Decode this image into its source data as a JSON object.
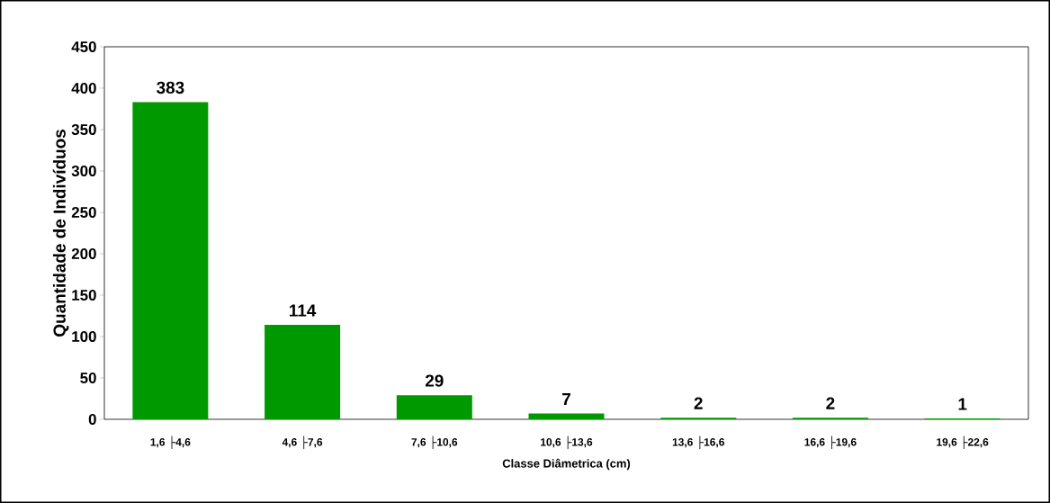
{
  "chart_data": {
    "type": "bar",
    "xlabel": "Classe Diâmetrica (cm)",
    "ylabel": "Quantidade de Indivíduos",
    "categories": [
      "1,6 ├4,6",
      "4,6 ├7,6",
      "7,6 ├10,6",
      "10,6 ├13,6",
      "13,6 ├16,6",
      "16,6 ├19,6",
      "19,6 ├22,6"
    ],
    "values": [
      383,
      114,
      29,
      7,
      2,
      2,
      1
    ],
    "color": "#009900",
    "ylim": [
      0,
      450
    ],
    "yticks": [
      0,
      50,
      100,
      150,
      200,
      250,
      300,
      350,
      400,
      450
    ],
    "data_labels": true
  }
}
